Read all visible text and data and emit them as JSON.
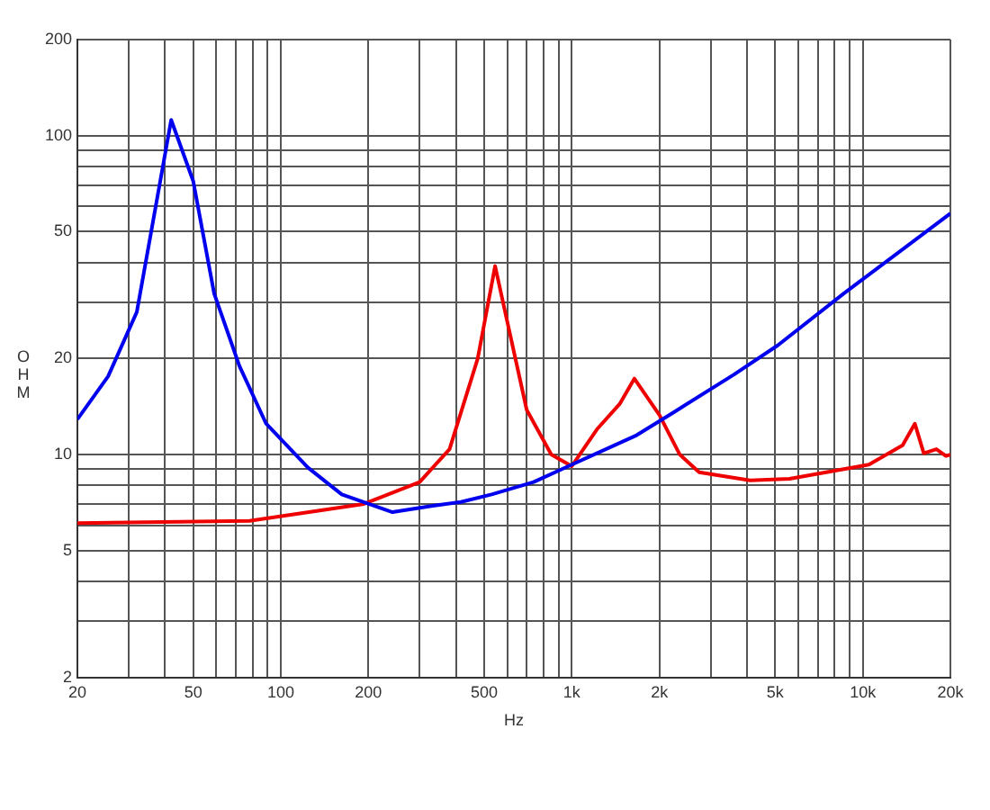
{
  "chart_data": {
    "type": "line",
    "xlabel": "Hz",
    "ylabel": "OHM",
    "log": "xy",
    "grid": true,
    "legend": false,
    "marker": "none",
    "line_style": "solid",
    "xlim": [
      20,
      20000
    ],
    "ylim": [
      2,
      200
    ],
    "xticks": [
      20,
      {
        "value": 30,
        "label": null
      },
      {
        "value": 40,
        "label": null
      },
      50,
      {
        "value": 60,
        "label": null
      },
      {
        "value": 70,
        "label": null
      },
      {
        "value": 80,
        "label": null
      },
      {
        "value": 90,
        "label": null
      },
      100,
      200,
      {
        "value": 300,
        "label": null
      },
      {
        "value": 400,
        "label": null
      },
      500,
      {
        "value": 600,
        "label": null
      },
      {
        "value": 700,
        "label": null
      },
      {
        "value": 800,
        "label": null
      },
      {
        "value": 900,
        "label": null
      },
      {
        "value": 1000,
        "label": "1k"
      },
      {
        "value": 2000,
        "label": "2k"
      },
      {
        "value": 3000,
        "label": null
      },
      {
        "value": 4000,
        "label": null
      },
      {
        "value": 5000,
        "label": "5k"
      },
      {
        "value": 6000,
        "label": null
      },
      {
        "value": 7000,
        "label": null
      },
      {
        "value": 8000,
        "label": null
      },
      {
        "value": 9000,
        "label": null
      },
      {
        "value": 10000,
        "label": "10k"
      },
      {
        "value": 20000,
        "label": "20k"
      }
    ],
    "yticks": [
      2,
      {
        "value": 3,
        "label": null
      },
      {
        "value": 4,
        "label": null
      },
      5,
      {
        "value": 6,
        "label": null
      },
      {
        "value": 7,
        "label": null
      },
      {
        "value": 8,
        "label": null
      },
      {
        "value": 9,
        "label": null
      },
      10,
      20,
      {
        "value": 30,
        "label": null
      },
      {
        "value": 40,
        "label": null
      },
      50,
      {
        "value": 60,
        "label": null
      },
      {
        "value": 70,
        "label": null
      },
      {
        "value": 80,
        "label": null
      },
      {
        "value": 90,
        "label": null
      },
      100,
      200
    ],
    "series": [
      {
        "color": "#0000ee",
        "x": [
          20,
          25.5,
          32,
          42,
          50,
          59,
          72,
          89,
          124,
          162,
          242,
          329,
          416,
          530,
          739,
          1000,
          1670,
          2250,
          3600,
          5100,
          8600,
          20000
        ],
        "values": [
          12.9,
          17.6,
          28,
          112,
          72,
          32,
          19,
          12.5,
          9.1,
          7.5,
          6.6,
          6.9,
          7.1,
          7.5,
          8.2,
          9.3,
          11.5,
          13.6,
          17.8,
          22,
          32,
          57
        ]
      },
      {
        "color": "#ee0000",
        "x": [
          20,
          78,
          193,
          300,
          380,
          475,
          545,
          590,
          700,
          850,
          1000,
          1220,
          1460,
          1640,
          2000,
          2350,
          2740,
          4100,
          5600,
          10500,
          13700,
          15100,
          16200,
          17900,
          19300,
          20000
        ],
        "values": [
          6.1,
          6.2,
          7,
          8.2,
          10.4,
          20,
          39,
          28,
          13.8,
          10,
          9.2,
          12,
          14.4,
          17.3,
          13.3,
          10,
          8.8,
          8.3,
          8.4,
          9.3,
          10.7,
          12.5,
          10.1,
          10.4,
          9.9,
          10
        ]
      }
    ]
  }
}
